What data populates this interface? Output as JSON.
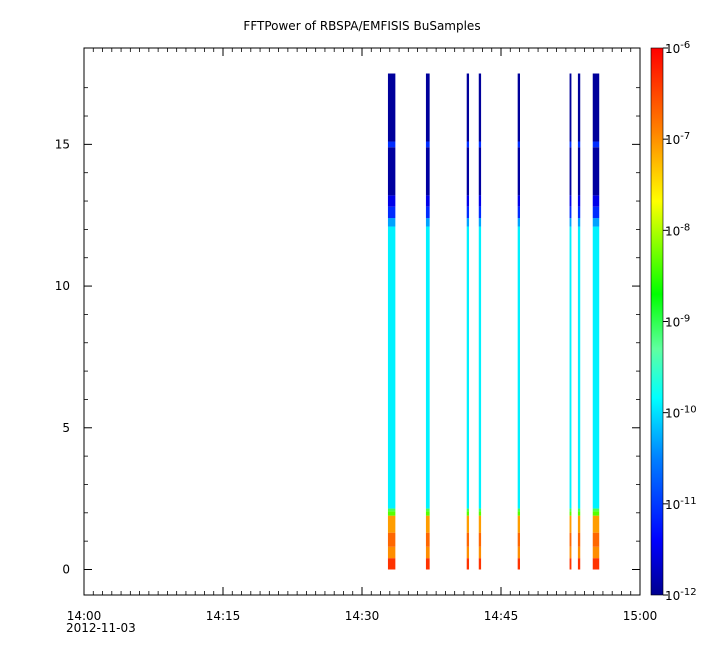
{
  "chart_data": {
    "type": "heatmap",
    "title": "FFTPower of RBSPA/EMFISIS  BuSamples",
    "xlabel": "",
    "ylabel": "",
    "x_ticks": [
      "14:00",
      "14:15",
      "14:30",
      "14:45",
      "15:00"
    ],
    "x_tick_minutes": [
      0,
      15,
      30,
      45,
      60
    ],
    "x_date_label": "2012-11-03",
    "xlim_minutes": [
      0,
      60
    ],
    "y_ticks": [
      0,
      5,
      10,
      15
    ],
    "ylim": [
      -0.9,
      18.4
    ],
    "colorbar": {
      "scale": "log",
      "range": [
        1e-12,
        1e-06
      ],
      "ticks": [
        {
          "base": "10",
          "exp": "-6",
          "value": 1e-06
        },
        {
          "base": "10",
          "exp": "-7",
          "value": 1e-07
        },
        {
          "base": "10",
          "exp": "-8",
          "value": 1e-08
        },
        {
          "base": "10",
          "exp": "-9",
          "value": 1e-09
        },
        {
          "base": "10",
          "exp": "-10",
          "value": 1e-10
        },
        {
          "base": "10",
          "exp": "-11",
          "value": 1e-11
        },
        {
          "base": "10",
          "exp": "-12",
          "value": 1e-12
        }
      ],
      "colormap": [
        "#00008f",
        "#0000ff",
        "#0080ff",
        "#00ffff",
        "#80ff80",
        "#00ff00",
        "#ffff00",
        "#ff8000",
        "#ff0000"
      ]
    },
    "bursts": [
      {
        "start_min": 32.8,
        "end_min": 33.6,
        "fmax": 17.5
      },
      {
        "start_min": 36.9,
        "end_min": 37.3,
        "fmax": 17.5
      },
      {
        "start_min": 41.3,
        "end_min": 41.55,
        "fmax": 17.5
      },
      {
        "start_min": 42.6,
        "end_min": 42.85,
        "fmax": 17.5
      },
      {
        "start_min": 46.8,
        "end_min": 47.05,
        "fmax": 17.5
      },
      {
        "start_min": 52.4,
        "end_min": 52.6,
        "fmax": 17.5
      },
      {
        "start_min": 53.3,
        "end_min": 53.55,
        "fmax": 17.5
      },
      {
        "start_min": 54.9,
        "end_min": 55.6,
        "fmax": 17.5
      }
    ],
    "spectrum_bands": [
      {
        "f_from": 0.0,
        "f_to": 0.4,
        "value": 5e-07
      },
      {
        "f_from": 0.4,
        "f_to": 0.8,
        "value": 1.5e-07
      },
      {
        "f_from": 0.8,
        "f_to": 1.3,
        "value": 2.5e-07
      },
      {
        "f_from": 1.3,
        "f_to": 1.9,
        "value": 1.2e-07
      },
      {
        "f_from": 1.9,
        "f_to": 2.05,
        "value": 1e-08
      },
      {
        "f_from": 2.05,
        "f_to": 2.15,
        "value": 2e-09
      },
      {
        "f_from": 2.15,
        "f_to": 12.1,
        "value": 1.5e-10
      },
      {
        "f_from": 12.1,
        "f_to": 12.4,
        "value": 5e-11
      },
      {
        "f_from": 12.4,
        "f_to": 12.8,
        "value": 1e-11
      },
      {
        "f_from": 12.8,
        "f_to": 13.2,
        "value": 4e-12
      },
      {
        "f_from": 13.2,
        "f_to": 14.9,
        "value": 1.3e-12
      },
      {
        "f_from": 14.9,
        "f_to": 15.1,
        "value": 1e-11
      },
      {
        "f_from": 15.1,
        "f_to": 17.5,
        "value": 1.2e-12
      }
    ],
    "grid": false,
    "legend": "colorbar-right"
  }
}
